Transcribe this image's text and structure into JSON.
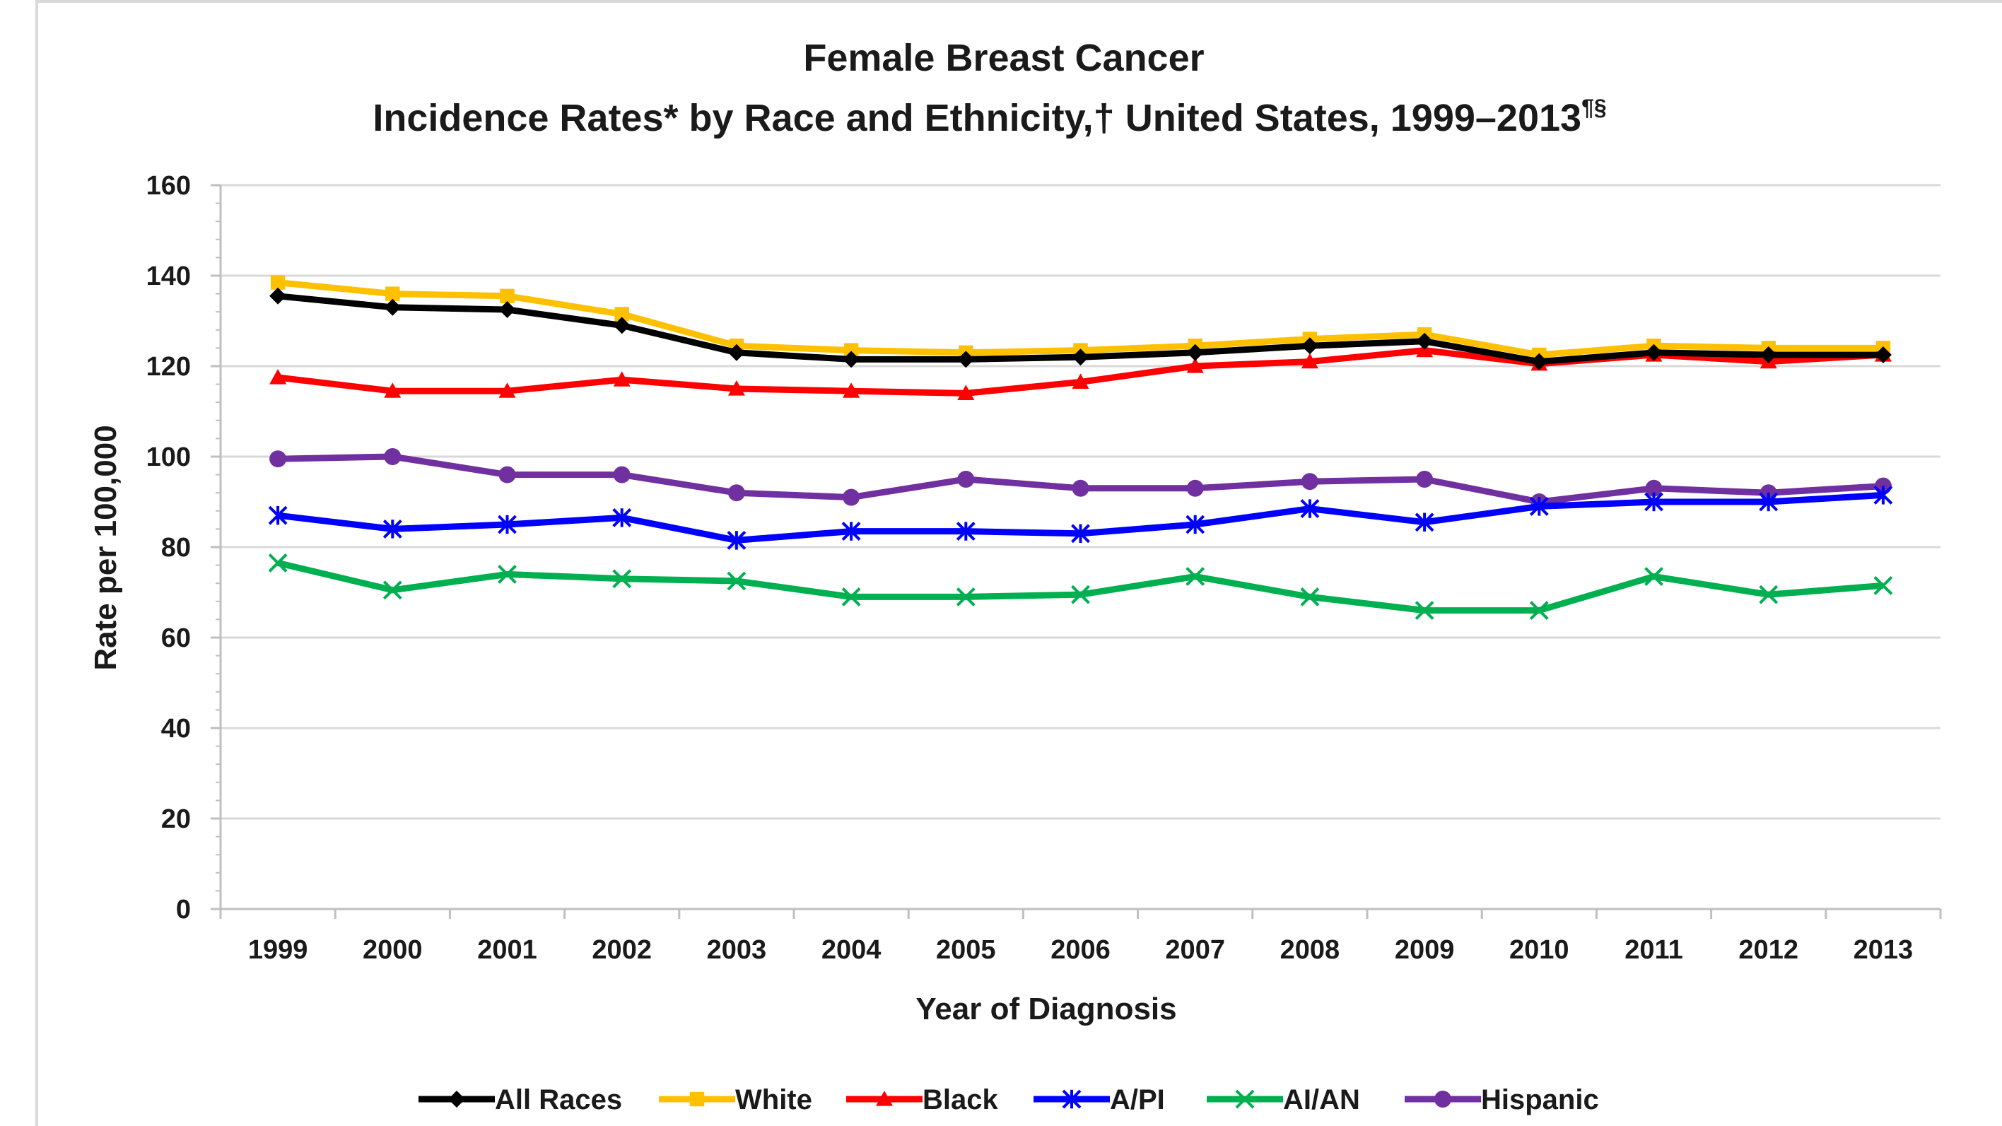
{
  "chart_data": {
    "type": "line",
    "title": "Female Breast Cancer",
    "subtitle": "Incidence Rates* by Race and Ethnicity,† United States, 1999–2013",
    "subtitle_superscript": "¶§",
    "xlabel": "Year of Diagnosis",
    "ylabel": "Rate per 100,000",
    "ylim": [
      0,
      160
    ],
    "yticks": [
      0,
      20,
      40,
      60,
      80,
      100,
      120,
      140,
      160
    ],
    "grid": true,
    "legend_position": "bottom",
    "x": [
      "1999",
      "2000",
      "2001",
      "2002",
      "2003",
      "2004",
      "2005",
      "2006",
      "2007",
      "2008",
      "2009",
      "2010",
      "2011",
      "2012",
      "2013"
    ],
    "series": [
      {
        "name": "All Races",
        "color": "#000000",
        "marker": "diamond",
        "values": [
          135.5,
          133.0,
          132.5,
          129.0,
          123.0,
          121.5,
          121.5,
          122.0,
          123.0,
          124.5,
          125.5,
          121.0,
          123.0,
          122.5,
          122.5
        ]
      },
      {
        "name": "White",
        "color": "#ffc000",
        "marker": "square",
        "values": [
          138.5,
          136.0,
          135.5,
          131.5,
          124.5,
          123.5,
          123.0,
          123.5,
          124.5,
          126.0,
          127.0,
          122.5,
          124.5,
          124.0,
          124.0
        ]
      },
      {
        "name": "Black",
        "color": "#ff0000",
        "marker": "triangle",
        "values": [
          117.5,
          114.5,
          114.5,
          117.0,
          115.0,
          114.5,
          114.0,
          116.5,
          120.0,
          121.0,
          123.5,
          120.5,
          122.5,
          121.0,
          122.5
        ]
      },
      {
        "name": "A/PI",
        "color": "#0000ff",
        "marker": "asterisk",
        "values": [
          87.0,
          84.0,
          85.0,
          86.5,
          81.5,
          83.5,
          83.5,
          83.0,
          85.0,
          88.5,
          85.5,
          89.0,
          90.0,
          90.0,
          91.5
        ]
      },
      {
        "name": "AI/AN",
        "color": "#00b050",
        "marker": "x",
        "values": [
          76.5,
          70.5,
          74.0,
          73.0,
          72.5,
          69.0,
          69.0,
          69.5,
          73.5,
          69.0,
          66.0,
          66.0,
          73.5,
          69.5,
          71.5
        ]
      },
      {
        "name": "Hispanic",
        "color": "#7030a0",
        "marker": "circle",
        "values": [
          99.5,
          100.0,
          96.0,
          96.0,
          92.0,
          91.0,
          95.0,
          93.0,
          93.0,
          94.5,
          95.0,
          90.0,
          93.0,
          92.0,
          93.5
        ]
      }
    ]
  }
}
